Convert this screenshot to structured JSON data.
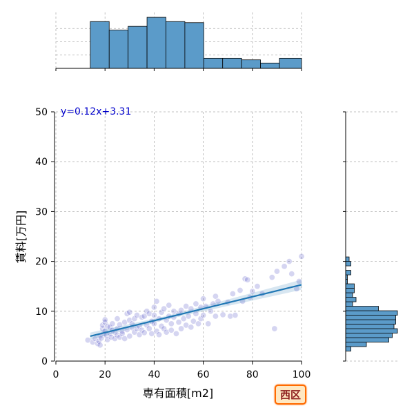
{
  "chart_data": {
    "type": "scatter",
    "xlabel": "専有面積[m2]",
    "ylabel": "賃料[万円]",
    "xlim": [
      0,
      100
    ],
    "ylim": [
      0,
      50
    ],
    "xticks": [
      0,
      20,
      40,
      60,
      80,
      100
    ],
    "yticks": [
      0,
      10,
      20,
      30,
      40,
      50
    ],
    "grid": true,
    "annotation": "y=0.12x+3.31",
    "regression": {
      "slope": 0.12,
      "intercept": 3.31,
      "x_range": [
        14,
        100
      ]
    },
    "badge": "西区",
    "colors": {
      "points": "#3f3fc0",
      "line": "#1f77b4",
      "bars": "#5b9bc9",
      "annotation": "#0000cc"
    },
    "points": [
      [
        13,
        4.2
      ],
      [
        15,
        3.8
      ],
      [
        16,
        4.5
      ],
      [
        17,
        3.5
      ],
      [
        17.5,
        4.0
      ],
      [
        18,
        3.2
      ],
      [
        18,
        5.0
      ],
      [
        18.5,
        4.6
      ],
      [
        19,
        6.5
      ],
      [
        19,
        7.2
      ],
      [
        19.5,
        5.5
      ],
      [
        20,
        7.8
      ],
      [
        20,
        8.3
      ],
      [
        20,
        6.0
      ],
      [
        20.5,
        5.2
      ],
      [
        21,
        4.3
      ],
      [
        21,
        7.0
      ],
      [
        22,
        6.8
      ],
      [
        22,
        5.5
      ],
      [
        22.5,
        4.8
      ],
      [
        23,
        7.5
      ],
      [
        23,
        6.2
      ],
      [
        24,
        5.8
      ],
      [
        24,
        4.5
      ],
      [
        25,
        6.5
      ],
      [
        25,
        5.2
      ],
      [
        25,
        8.5
      ],
      [
        26,
        4.8
      ],
      [
        26,
        7.3
      ],
      [
        27,
        6.0
      ],
      [
        27,
        5.5
      ],
      [
        28,
        7.8
      ],
      [
        28,
        4.5
      ],
      [
        29,
        9.5
      ],
      [
        29,
        6.3
      ],
      [
        30,
        8.2
      ],
      [
        30,
        5.0
      ],
      [
        30,
        9.8
      ],
      [
        31,
        6.7
      ],
      [
        31,
        7.5
      ],
      [
        32,
        8.5
      ],
      [
        32,
        5.8
      ],
      [
        33,
        9.2
      ],
      [
        33,
        6.5
      ],
      [
        34,
        7.0
      ],
      [
        34,
        5.3
      ],
      [
        35,
        8.8
      ],
      [
        35,
        6.2
      ],
      [
        36,
        9.0
      ],
      [
        36,
        5.7
      ],
      [
        37,
        7.2
      ],
      [
        37,
        10.0
      ],
      [
        38,
        9.5
      ],
      [
        38,
        6.5
      ],
      [
        39,
        8.0
      ],
      [
        39,
        5.5
      ],
      [
        40,
        10.8
      ],
      [
        40,
        7.5
      ],
      [
        40,
        9.2
      ],
      [
        41,
        6.0
      ],
      [
        41,
        12.0
      ],
      [
        42,
        8.5
      ],
      [
        42,
        5.3
      ],
      [
        43,
        9.8
      ],
      [
        43,
        7.0
      ],
      [
        44,
        6.5
      ],
      [
        44,
        10.5
      ],
      [
        45,
        8.2
      ],
      [
        45,
        5.8
      ],
      [
        46,
        9.0
      ],
      [
        46,
        11.2
      ],
      [
        47,
        7.5
      ],
      [
        47,
        6.2
      ],
      [
        48,
        10.0
      ],
      [
        48,
        8.8
      ],
      [
        49,
        5.5
      ],
      [
        50,
        9.5
      ],
      [
        50,
        7.8
      ],
      [
        51,
        10.2
      ],
      [
        51,
        6.5
      ],
      [
        52,
        8.5
      ],
      [
        53,
        11.0
      ],
      [
        53,
        7.2
      ],
      [
        54,
        9.0
      ],
      [
        55,
        10.5
      ],
      [
        55,
        6.8
      ],
      [
        56,
        8.0
      ],
      [
        57,
        11.5
      ],
      [
        57,
        9.5
      ],
      [
        58,
        7.5
      ],
      [
        59,
        10.8
      ],
      [
        59,
        8.5
      ],
      [
        60,
        12.5
      ],
      [
        60,
        9.2
      ],
      [
        61,
        11.0
      ],
      [
        62,
        7.5
      ],
      [
        63,
        10.0
      ],
      [
        64,
        11.5
      ],
      [
        65,
        13.0
      ],
      [
        65,
        9.0
      ],
      [
        66,
        12.0
      ],
      [
        68,
        9.3
      ],
      [
        70,
        11.8
      ],
      [
        71,
        9.0
      ],
      [
        72,
        13.5
      ],
      [
        73,
        9.2
      ],
      [
        75,
        14.2
      ],
      [
        76,
        12.0
      ],
      [
        77,
        16.5
      ],
      [
        78,
        16.3
      ],
      [
        79,
        12.8
      ],
      [
        80,
        14.0
      ],
      [
        82,
        15.0
      ],
      [
        84,
        13.5
      ],
      [
        88,
        16.8
      ],
      [
        89,
        6.5
      ],
      [
        90,
        18.0
      ],
      [
        93,
        19.0
      ],
      [
        95,
        20.0
      ],
      [
        96,
        17.5
      ],
      [
        98,
        14.5
      ],
      [
        99,
        16.0
      ],
      [
        100,
        21.0
      ]
    ],
    "x_hist": {
      "bin_edges": [
        14,
        21.7,
        29.4,
        37.1,
        44.8,
        52.5,
        60.2,
        67.9,
        75.6,
        83.3,
        91,
        100
      ],
      "counts": [
        88,
        72,
        79,
        96,
        88,
        86,
        19,
        19,
        16,
        10,
        19
      ]
    },
    "y_hist": {
      "bin_edges": [
        2,
        2.9,
        3.8,
        4.7,
        5.6,
        6.5,
        7.4,
        8.3,
        9.2,
        10.1,
        11,
        11.9,
        12.8,
        13.7,
        14.6,
        15.5,
        16.4,
        17.3,
        18.2,
        19.1,
        20,
        20.9
      ],
      "counts": [
        3,
        12,
        25,
        27,
        30,
        28,
        29,
        29,
        30,
        19,
        4,
        6,
        4,
        5,
        5,
        1,
        1,
        3,
        0,
        3,
        2
      ]
    }
  }
}
